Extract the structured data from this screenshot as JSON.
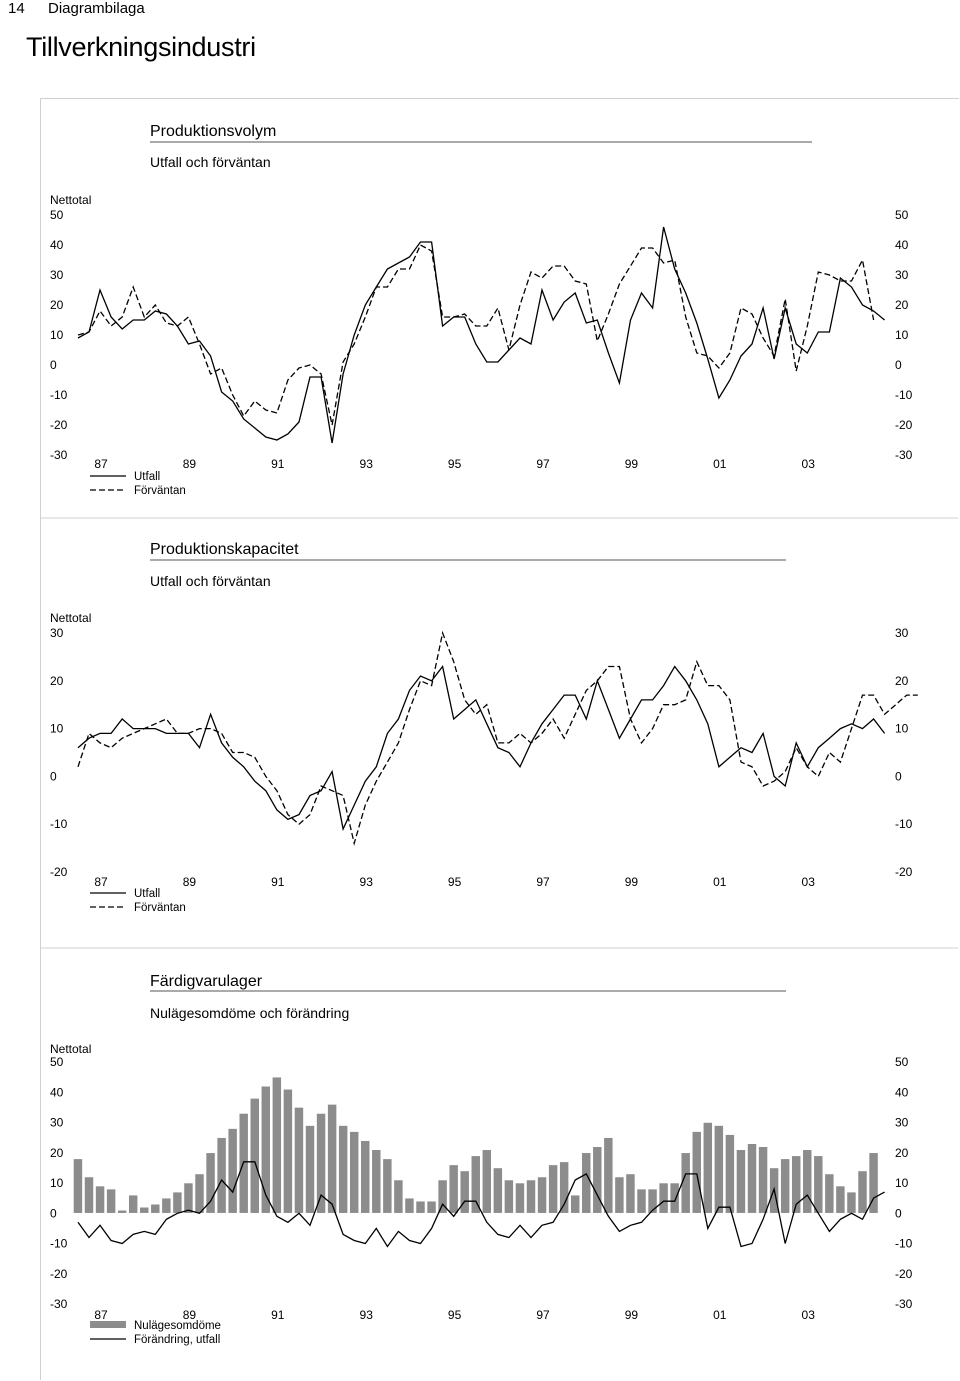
{
  "page": {
    "number": "14",
    "section": "Diagrambilaga",
    "title": "Tillverkningsindustri"
  },
  "chart_data": [
    {
      "type": "line",
      "title": "Produktionsvolym",
      "subtitle": "Utfall och förväntan",
      "ylabel": "Nettotal",
      "ylim": [
        -30,
        50
      ],
      "yticks": [
        "50",
        "40",
        "30",
        "20",
        "10",
        "0",
        "-10",
        "-20",
        "-30"
      ],
      "xticks": [
        "87",
        "89",
        "91",
        "93",
        "95",
        "97",
        "99",
        "01",
        "03"
      ],
      "x_start": 1986.75,
      "x_step": 0.25,
      "series": [
        {
          "name": "Utfall",
          "style": "solid",
          "values": [
            9,
            11,
            25,
            16,
            12,
            15,
            15,
            18,
            17,
            13,
            7,
            8,
            3,
            -9,
            -12,
            -18,
            -21,
            -24,
            -25,
            -23,
            -19,
            -4,
            -4,
            -26,
            -3,
            10,
            20,
            26,
            32,
            34,
            36,
            41,
            41,
            13,
            16,
            16,
            7,
            1,
            1,
            5,
            9,
            7,
            25,
            15,
            21,
            24,
            14,
            15,
            4,
            -6,
            15,
            24,
            19,
            46,
            32,
            24,
            14,
            2,
            -11,
            -5,
            3,
            7,
            19,
            2,
            19,
            7,
            4,
            11,
            11,
            29,
            26,
            20,
            18,
            15
          ],
          "color": "#000000"
        },
        {
          "name": "Förväntan",
          "style": "dashed",
          "values": [
            10,
            11,
            18,
            13,
            16,
            26,
            16,
            20,
            14,
            13,
            16,
            7,
            -3,
            -1,
            -10,
            -17,
            -12,
            -15,
            -16,
            -5,
            -1,
            0,
            -3,
            -20,
            1,
            7,
            16,
            26,
            26,
            32,
            32,
            40,
            38,
            16,
            16,
            17,
            13,
            13,
            19,
            5,
            20,
            31,
            29,
            33,
            33,
            28,
            27,
            8,
            17,
            27,
            33,
            39,
            39,
            34,
            35,
            16,
            4,
            3,
            -1,
            4,
            19,
            17,
            9,
            3,
            22,
            -2,
            13,
            31,
            30,
            28,
            28,
            35,
            15
          ],
          "color": "#000000"
        }
      ]
    },
    {
      "type": "line",
      "title": "Produktionskapacitet",
      "subtitle": "Utfall och förväntan",
      "ylabel": "Nettotal",
      "ylim": [
        -20,
        30
      ],
      "yticks": [
        "30",
        "20",
        "10",
        "0",
        "-10",
        "-20"
      ],
      "xticks": [
        "87",
        "89",
        "91",
        "93",
        "95",
        "97",
        "99",
        "01",
        "03"
      ],
      "x_start": 1986.75,
      "x_step": 0.25,
      "series": [
        {
          "name": "Utfall",
          "style": "solid",
          "values": [
            6,
            8,
            9,
            9,
            12,
            10,
            10,
            10,
            9,
            9,
            9,
            6,
            13,
            7,
            4,
            2,
            -1,
            -3,
            -7,
            -9,
            -8,
            -4,
            -3,
            1,
            -11,
            -6,
            -1,
            2,
            9,
            12,
            18,
            21,
            20,
            23,
            12,
            14,
            16,
            11,
            6,
            5,
            2,
            7,
            11,
            14,
            17,
            17,
            12,
            20,
            14,
            8,
            12,
            16,
            16,
            19,
            23,
            20,
            16,
            11,
            2,
            4,
            6,
            5,
            9,
            0,
            -2,
            7,
            2,
            6,
            8,
            10,
            11,
            10,
            12,
            9
          ],
          "color": "#000000"
        },
        {
          "name": "Förväntan",
          "style": "dashed",
          "values": [
            2,
            9,
            7,
            6,
            8,
            9,
            10,
            11,
            12,
            9,
            9,
            10,
            10,
            9,
            5,
            5,
            4,
            0,
            -3,
            -8,
            -10,
            -8,
            -2,
            -3,
            -4,
            -14,
            -6,
            -1,
            3,
            7,
            14,
            20,
            19,
            30,
            24,
            16,
            13,
            15,
            7,
            7,
            9,
            7,
            9,
            12,
            8,
            13,
            18,
            20,
            23,
            23,
            12,
            7,
            10,
            15,
            15,
            16,
            24,
            19,
            19,
            16,
            3,
            2,
            -2,
            -1,
            1,
            6,
            2,
            0,
            5,
            3,
            10,
            17,
            17,
            13,
            15,
            17,
            17
          ],
          "color": "#000000"
        }
      ]
    },
    {
      "type": "bar",
      "title": "Färdigvarulager",
      "subtitle": "Nulägesomdöme och förändring",
      "ylabel": "Nettotal",
      "ylim": [
        -30,
        50
      ],
      "yticks": [
        "50",
        "40",
        "30",
        "20",
        "10",
        "0",
        "-10",
        "-20",
        "-30"
      ],
      "xticks": [
        "87",
        "89",
        "91",
        "93",
        "95",
        "97",
        "99",
        "01",
        "03"
      ],
      "x_start": 1986.75,
      "x_step": 0.25,
      "series": [
        {
          "name": "Nulägesomdöme",
          "style": "bar",
          "color": "#8c8c8c",
          "values": [
            18,
            12,
            9,
            8,
            1,
            6,
            2,
            3,
            5,
            7,
            10,
            13,
            20,
            25,
            28,
            33,
            38,
            42,
            45,
            41,
            35,
            29,
            33,
            36,
            29,
            27,
            24,
            21,
            18,
            11,
            5,
            4,
            4,
            11,
            16,
            14,
            19,
            21,
            15,
            11,
            10,
            11,
            12,
            16,
            17,
            6,
            20,
            22,
            25,
            12,
            13,
            8,
            8,
            10,
            10,
            20,
            27,
            30,
            29,
            26,
            21,
            23,
            22,
            15,
            18,
            19,
            21,
            19,
            13,
            9,
            7,
            14,
            20
          ]
        },
        {
          "name": "Förändring, utfall",
          "style": "solid",
          "color": "#000000",
          "values": [
            -3,
            -8,
            -4,
            -9,
            -10,
            -7,
            -6,
            -7,
            -2,
            0,
            1,
            0,
            4,
            11,
            7,
            17,
            17,
            6,
            -1,
            -3,
            0,
            -4,
            6,
            3,
            -7,
            -9,
            -10,
            -5,
            -11,
            -6,
            -9,
            -10,
            -5,
            3,
            -1,
            4,
            4,
            -3,
            -7,
            -8,
            -4,
            -8,
            -4,
            -3,
            3,
            11,
            13,
            6,
            -1,
            -6,
            -4,
            -3,
            1,
            4,
            4,
            13,
            13,
            -5,
            2,
            2,
            -11,
            -10,
            -2,
            8,
            -10,
            3,
            6,
            0,
            -6,
            -2,
            0,
            -2,
            5,
            7
          ]
        }
      ]
    }
  ]
}
